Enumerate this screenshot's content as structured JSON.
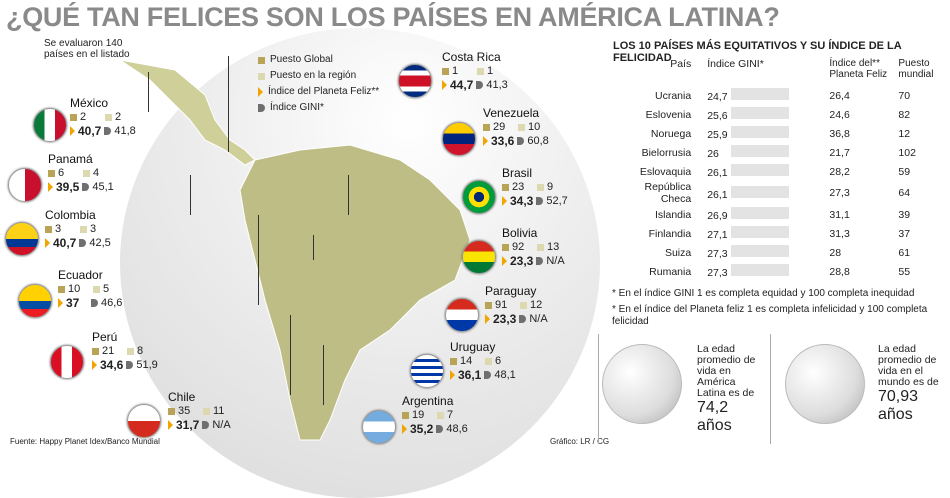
{
  "title": "¿QUÉ TAN FELICES SON LOS PAÍSES EN AMÉRICA LATINA?",
  "intro": "Se evaluaron 140 países en el listado",
  "legend": {
    "global": "Puesto Global",
    "region": "Puesto en la región",
    "happy": "Índice del Planeta Feliz**",
    "gini": "Índice GINI*"
  },
  "countries": {
    "mexico": {
      "name": "México",
      "global": "2",
      "region": "2",
      "happy": "40,7",
      "gini": "41,8"
    },
    "panama": {
      "name": "Panamá",
      "global": "6",
      "region": "4",
      "happy": "39,5",
      "gini": "45,1"
    },
    "colombia": {
      "name": "Colombia",
      "global": "3",
      "region": "3",
      "happy": "40,7",
      "gini": "42,5"
    },
    "ecuador": {
      "name": "Ecuador",
      "global": "10",
      "region": "5",
      "happy": "37",
      "gini": "46,6"
    },
    "peru": {
      "name": "Perú",
      "global": "21",
      "region": "8",
      "happy": "34,6",
      "gini": "51,9"
    },
    "chile": {
      "name": "Chile",
      "global": "35",
      "region": "11",
      "happy": "31,7",
      "gini": "N/A"
    },
    "costarica": {
      "name": "Costa Rica",
      "global": "1",
      "region": "1",
      "happy": "44,7",
      "gini": "41,3"
    },
    "venezuela": {
      "name": "Venezuela",
      "global": "29",
      "region": "10",
      "happy": "33,6",
      "gini": "60,8"
    },
    "brasil": {
      "name": "Brasil",
      "global": "23",
      "region": "9",
      "happy": "34,3",
      "gini": "52,7"
    },
    "bolivia": {
      "name": "Bolivia",
      "global": "92",
      "region": "13",
      "happy": "23,3",
      "gini": "N/A"
    },
    "paraguay": {
      "name": "Paraguay",
      "global": "91",
      "region": "12",
      "happy": "23,3",
      "gini": "N/A"
    },
    "uruguay": {
      "name": "Uruguay",
      "global": "14",
      "region": "6",
      "happy": "36,1",
      "gini": "48,1"
    },
    "argentina": {
      "name": "Argentina",
      "global": "19",
      "region": "7",
      "happy": "35,2",
      "gini": "48,6"
    }
  },
  "table": {
    "title": "LOS 10 PAÍSES MÁS EQUITATIVOS Y SU ÍNDICE DE LA FELICIDAD",
    "headers": {
      "country": "País",
      "gini": "Índice GINI*",
      "happy": "Índice del** Planeta Feliz",
      "rank": "Puesto mundial"
    },
    "rows": [
      {
        "country": "Ucrania",
        "gini": "24,7",
        "happy": "26,4",
        "rank": "70"
      },
      {
        "country": "Eslovenia",
        "gini": "25,6",
        "happy": "24,6",
        "rank": "82"
      },
      {
        "country": "Noruega",
        "gini": "25,9",
        "happy": "36,8",
        "rank": "12"
      },
      {
        "country": "Bielorrusia",
        "gini": "26",
        "happy": "21,7",
        "rank": "102"
      },
      {
        "country": "Eslovaquia",
        "gini": "26,1",
        "happy": "28,2",
        "rank": "59"
      },
      {
        "country": "República Checa",
        "gini": "26,1",
        "happy": "27,3",
        "rank": "64"
      },
      {
        "country": "Islandia",
        "gini": "26,9",
        "happy": "31,1",
        "rank": "39"
      },
      {
        "country": "Finlandia",
        "gini": "27,1",
        "happy": "31,3",
        "rank": "37"
      },
      {
        "country": "Suiza",
        "gini": "27,3",
        "happy": "28",
        "rank": "61"
      },
      {
        "country": "Rumania",
        "gini": "27,3",
        "happy": "28,8",
        "rank": "55"
      }
    ]
  },
  "notes": {
    "n1": "* En el índice GINI 1 es completa equidad y 100 completa inequidad",
    "n2": "* En el índice del Planeta feliz 1 es completa infelicidad y 100 completa felicidad"
  },
  "life": {
    "latam_text": "La edad promedio de vida en América Latina es de",
    "latam_value": "74,2",
    "latam_unit": "años",
    "world_text": "La edad promedio de vida en el mundo es de",
    "world_value": "70,93",
    "world_unit": "años"
  },
  "source": "Fuente: Happy Planet Idex/Banco Mundial",
  "credit": "Gráfico: LR / CG",
  "colors": {
    "gold": "#b9a356",
    "light": "#dcd9b0",
    "orange": "#f0a500",
    "gray": "#6f6f6f"
  }
}
